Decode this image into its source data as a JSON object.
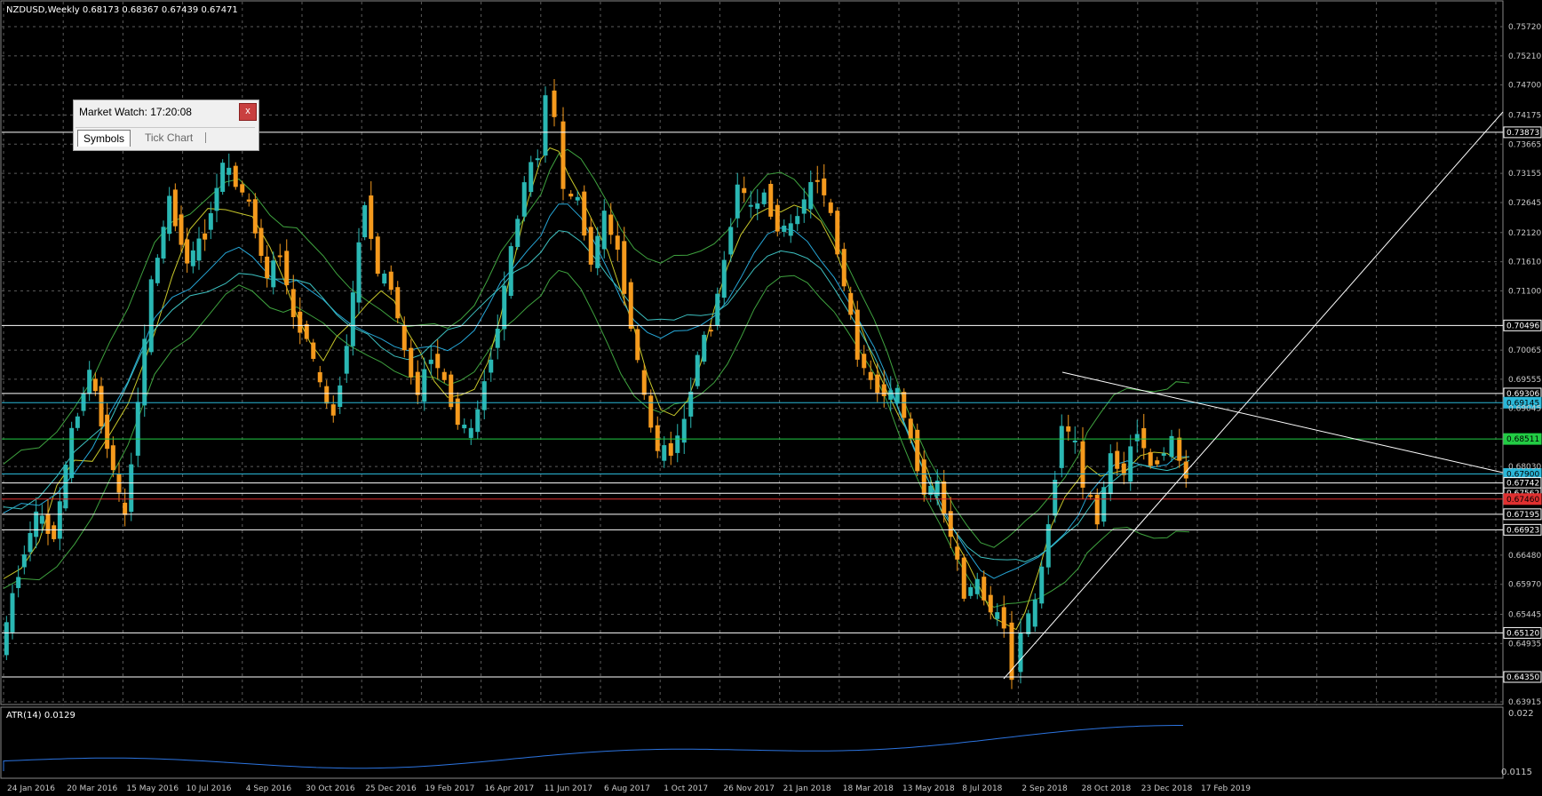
{
  "header": {
    "symbol_info": "NZDUSD,Weekly  0.68173 0.68367 0.67439 0.67471"
  },
  "indicator": {
    "label": "ATR(14) 0.0129",
    "scale_top": "0.022",
    "scale_bottom": "0.0115"
  },
  "market_watch": {
    "title": "Market Watch: 17:20:08",
    "close_label": "x",
    "tabs": [
      {
        "label": "Symbols",
        "active": true
      },
      {
        "label": "Tick Chart",
        "active": false
      }
    ]
  },
  "colors": {
    "background": "#000000",
    "bull_candle": "#2ab7b3",
    "bear_candle": "#f59a1d",
    "grid": "#5c5c5c",
    "axis_text": "#c8c8c8",
    "ma_fast": "#c7c72a",
    "ma_slow": "#26a7d8",
    "bollinger": "#3fa33f",
    "atr_line": "#2c74e0",
    "level_red": "#e03030",
    "level_green": "#22cc44"
  },
  "chart_data": {
    "type": "candlestick",
    "symbol": "NZDUSD",
    "timeframe": "Weekly",
    "ohlc_last": {
      "open": 0.68173,
      "high": 0.68367,
      "low": 0.67439,
      "close": 0.67471
    },
    "y_ticks": [
      "0.75720",
      "0.75210",
      "0.74700",
      "0.74175",
      "0.73665",
      "0.73155",
      "0.72645",
      "0.72120",
      "0.71610",
      "0.71100",
      "0.70065",
      "0.69555",
      "0.69045",
      "0.68030",
      "0.66480",
      "0.65970",
      "0.65445",
      "0.64935",
      "0.63915"
    ],
    "x_labels": [
      "24 Jan 2016",
      "20 Mar 2016",
      "15 May 2016",
      "10 Jul 2016",
      "4 Sep 2016",
      "30 Oct 2016",
      "25 Dec 2016",
      "19 Feb 2017",
      "16 Apr 2017",
      "11 Jun 2017",
      "6 Aug 2017",
      "1 Oct 2017",
      "26 Nov 2017",
      "21 Jan 2018",
      "18 Mar 2018",
      "13 May 2018",
      "8 Jul 2018",
      "2 Sep 2018",
      "28 Oct 2018",
      "23 Dec 2018",
      "17 Feb 2019"
    ],
    "levels": [
      {
        "price": 0.73873,
        "label": "0.73873",
        "color": "#ffffff"
      },
      {
        "price": 0.70496,
        "label": "0.70496",
        "color": "#ffffff"
      },
      {
        "price": 0.69306,
        "label": "0.69306",
        "color": "#ffffff"
      },
      {
        "price": 0.69145,
        "label": "0.69145",
        "color": "#2ab7d8"
      },
      {
        "price": 0.68511,
        "label": "0.68511",
        "color": "#22cc44"
      },
      {
        "price": 0.679,
        "label": "0.67900",
        "color": "#2ab7d8"
      },
      {
        "price": 0.67742,
        "label": "0.67742",
        "color": "#ffffff"
      },
      {
        "price": 0.67562,
        "label": "0.67562",
        "color": "#ffffff"
      },
      {
        "price": 0.6746,
        "label": "0.67460",
        "color": "#e03030"
      },
      {
        "price": 0.67195,
        "label": "0.67195",
        "color": "#ffffff"
      },
      {
        "price": 0.66923,
        "label": "0.66923",
        "color": "#ffffff"
      },
      {
        "price": 0.6512,
        "label": "0.65120",
        "color": "#ffffff"
      },
      {
        "price": 0.6435,
        "label": "0.64350",
        "color": "#ffffff"
      }
    ],
    "atr_range": [
      0.0115,
      0.022
    ]
  }
}
